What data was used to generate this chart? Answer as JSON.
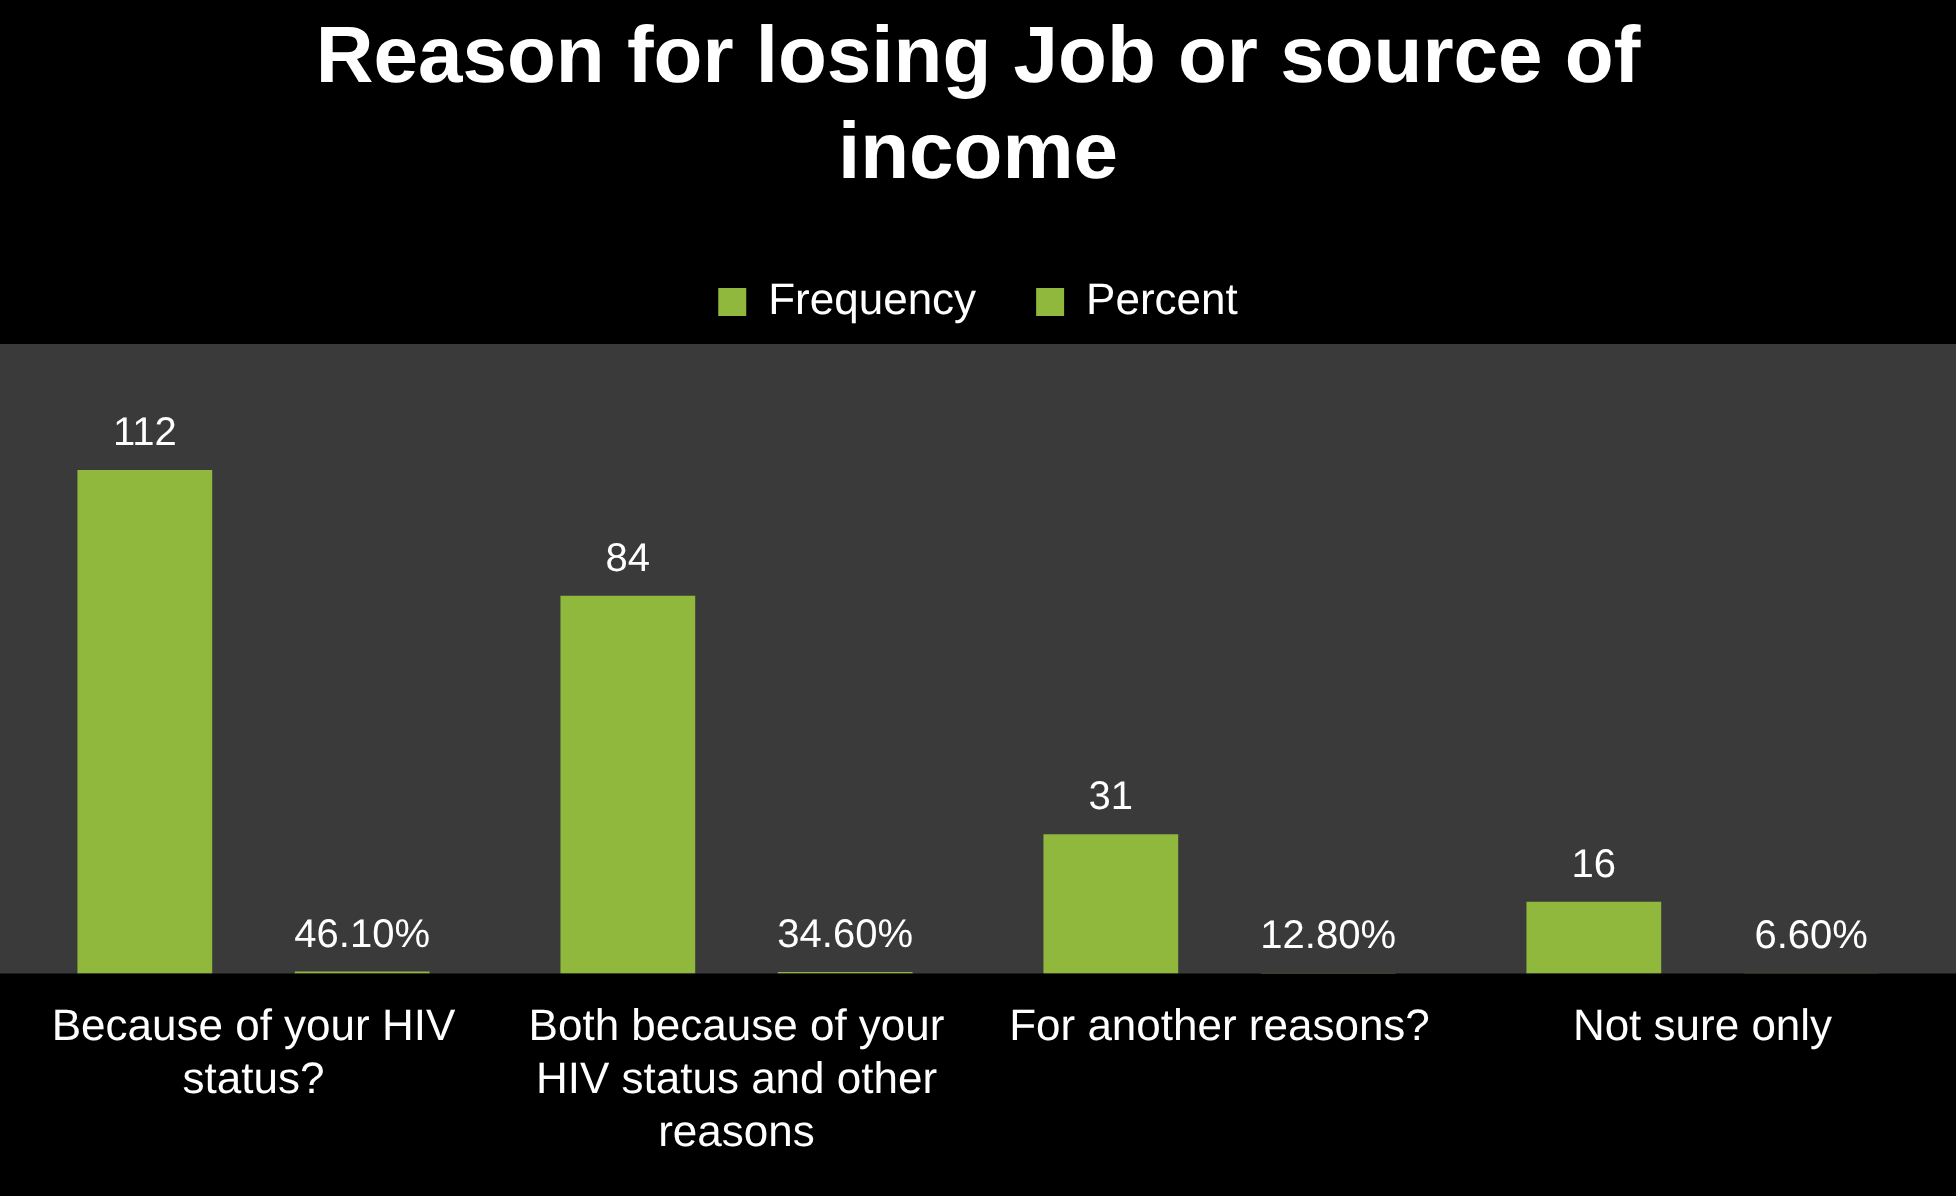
{
  "chart_data": {
    "type": "bar",
    "title": "Reason for losing Job or source of income",
    "categories": [
      "Because of your HIV status?",
      "Both because of your HIV status and other reasons",
      "For another reasons?",
      "Not sure only"
    ],
    "series": [
      {
        "name": "Frequency",
        "color": "#8fb83c",
        "values": [
          112,
          84,
          31,
          16
        ],
        "value_labels": [
          "112",
          "84",
          "31",
          "16"
        ]
      },
      {
        "name": "Percent",
        "color": "#8fb83c",
        "values": [
          0.461,
          0.346,
          0.128,
          0.066
        ],
        "value_labels": [
          "46.10%",
          "34.60%",
          "12.80%",
          "6.60%"
        ]
      }
    ],
    "legend": "top",
    "grid": false
  }
}
